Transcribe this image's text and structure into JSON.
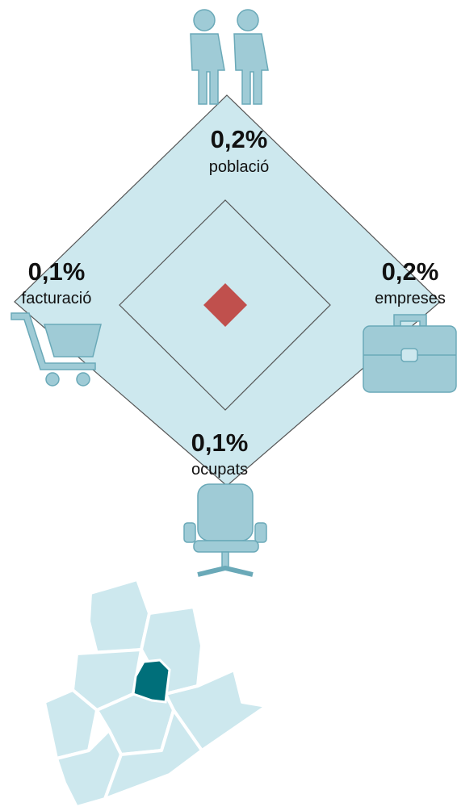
{
  "metrics": [
    {
      "value": "0,2%",
      "label": "població"
    },
    {
      "value": "0,2%",
      "label": "empreses"
    },
    {
      "value": "0,1%",
      "label": "ocupats"
    },
    {
      "value": "0,1%",
      "label": "facturació"
    }
  ]
}
